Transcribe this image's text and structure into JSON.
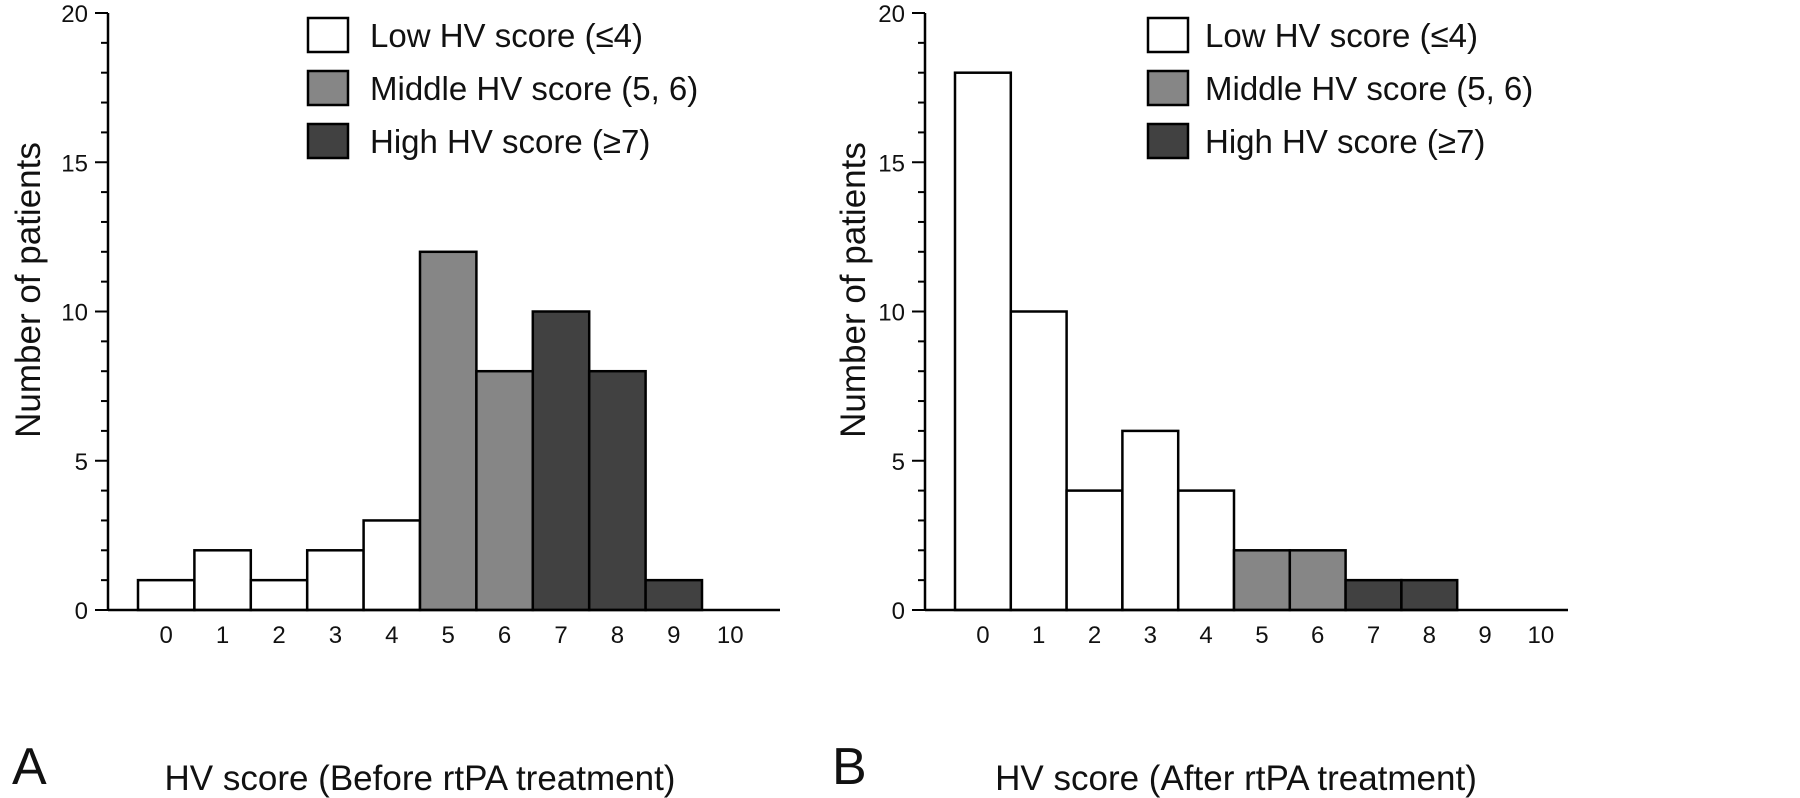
{
  "colors": {
    "low": "#ffffff",
    "middle": "#868686",
    "high": "#414141",
    "stroke": "#000000"
  },
  "chart_data": [
    {
      "type": "bar",
      "panel_label": "A",
      "xlabel": "HV score (Before rtPA treatment)",
      "ylabel": "Number of patients",
      "categories": [
        "0",
        "1",
        "2",
        "3",
        "4",
        "5",
        "6",
        "7",
        "8",
        "9",
        "10"
      ],
      "values": [
        1,
        2,
        1,
        2,
        3,
        12,
        8,
        10,
        8,
        1,
        0
      ],
      "groups": [
        "low",
        "low",
        "low",
        "low",
        "low",
        "middle",
        "middle",
        "high",
        "high",
        "high",
        "high"
      ],
      "ylim": [
        0,
        20
      ],
      "yticks": [
        "0",
        "5",
        "10",
        "15",
        "20"
      ],
      "grid": false,
      "legend_position": "top-right",
      "legend": [
        {
          "key": "low",
          "label": "Low HV score (≤4)"
        },
        {
          "key": "middle",
          "label": "Middle HV score (5, 6)"
        },
        {
          "key": "high",
          "label": "High HV score (≥7)"
        }
      ]
    },
    {
      "type": "bar",
      "panel_label": "B",
      "xlabel": "HV score (After rtPA treatment)",
      "ylabel": "Number of patients",
      "categories": [
        "0",
        "1",
        "2",
        "3",
        "4",
        "5",
        "6",
        "7",
        "8",
        "9",
        "10"
      ],
      "values": [
        18,
        10,
        4,
        6,
        4,
        2,
        2,
        1,
        1,
        0,
        0
      ],
      "groups": [
        "low",
        "low",
        "low",
        "low",
        "low",
        "middle",
        "middle",
        "high",
        "high",
        "high",
        "high"
      ],
      "ylim": [
        0,
        20
      ],
      "yticks": [
        "0",
        "5",
        "10",
        "15",
        "20"
      ],
      "grid": false,
      "legend_position": "top-right",
      "legend": [
        {
          "key": "low",
          "label": "Low HV score (≤4)"
        },
        {
          "key": "middle",
          "label": "Middle HV score (5, 6)"
        },
        {
          "key": "high",
          "label": "High HV score (≥7)"
        }
      ]
    }
  ]
}
